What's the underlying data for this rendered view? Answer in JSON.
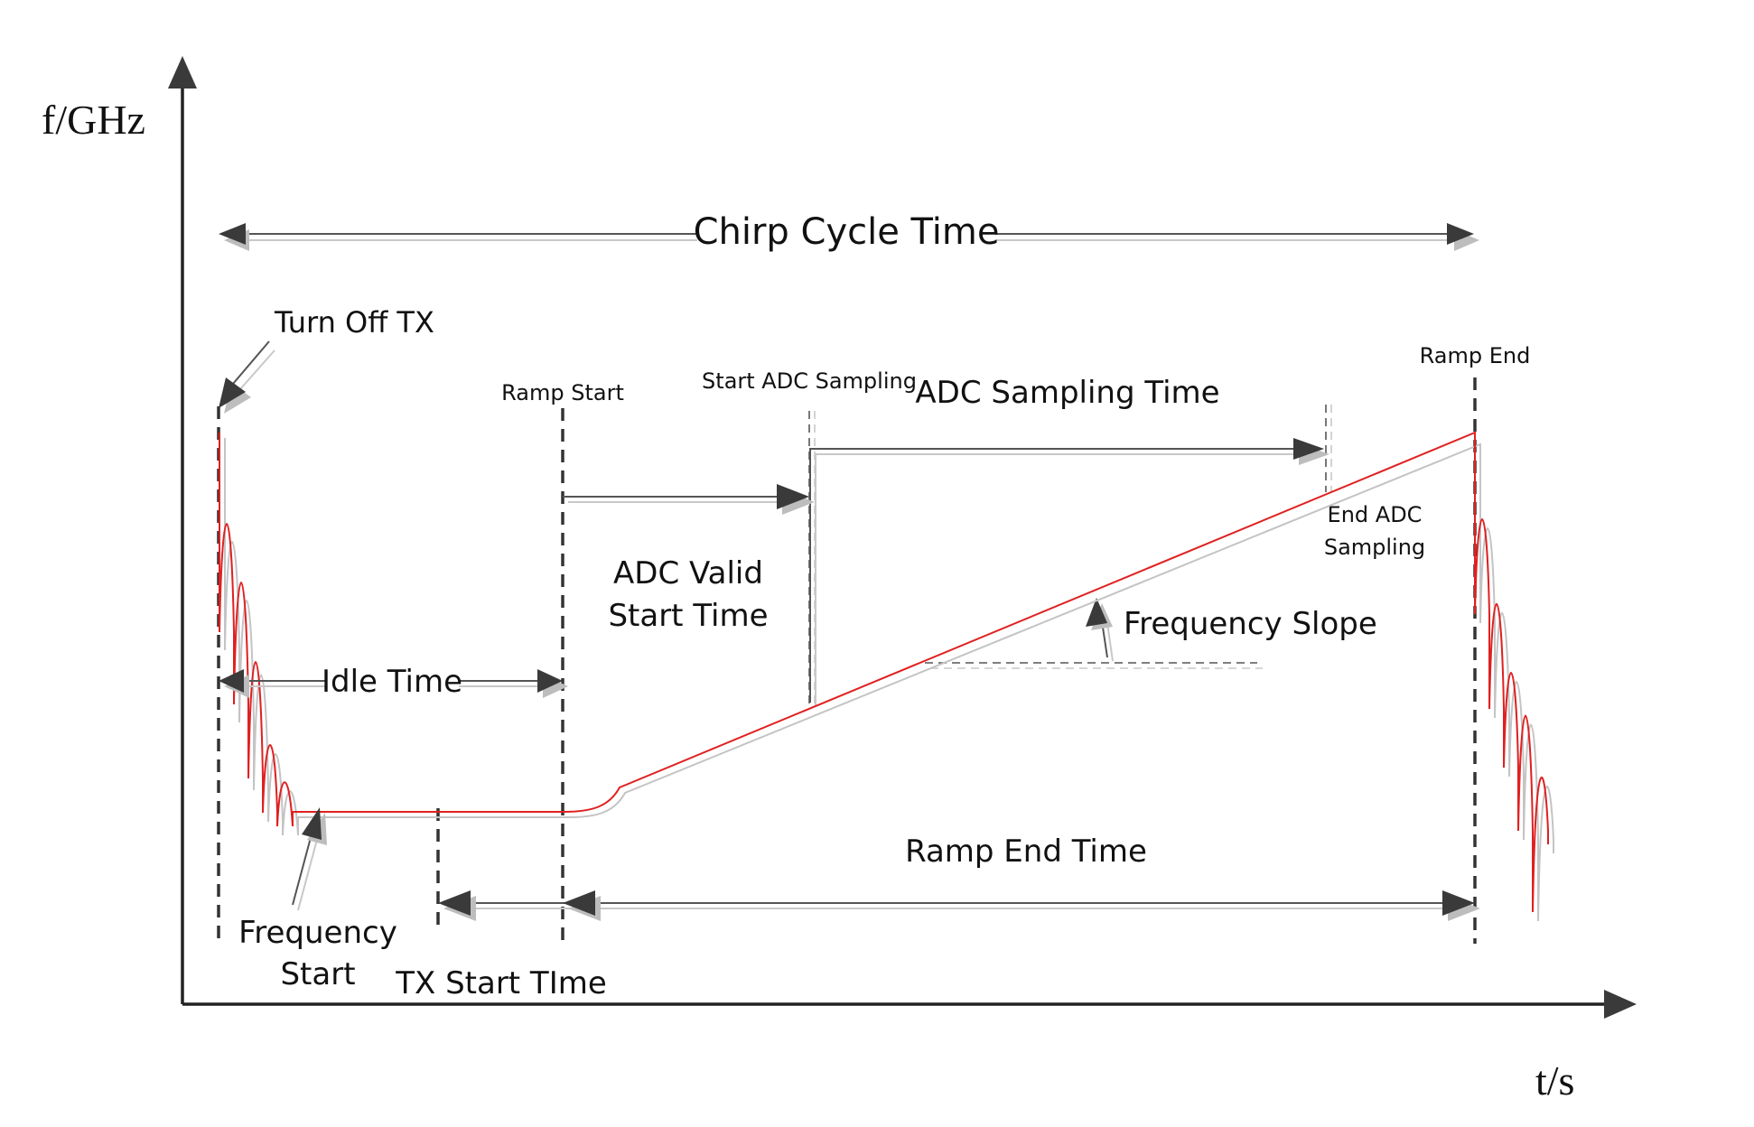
{
  "axes": {
    "y_label": "f/GHz",
    "x_label": "t/s"
  },
  "labels": {
    "chirp_cycle_time": "Chirp Cycle Time",
    "turn_off_tx": "Turn Off TX",
    "ramp_start": "Ramp Start",
    "start_adc_sampling": "Start ADC Sampling",
    "adc_sampling_time": "ADC Sampling Time",
    "ramp_end": "Ramp End",
    "end_adc_line1": "End ADC",
    "end_adc_line2": "Sampling",
    "adc_valid_line1": "ADC Valid",
    "adc_valid_line2": "Start Time",
    "frequency_slope": "Frequency Slope",
    "idle_time": "Idle Time",
    "ramp_end_time": "Ramp End Time",
    "frequency_start_line1": "Frequency",
    "frequency_start_line2": "Start",
    "tx_start_time": "TX Start TIme"
  },
  "colors": {
    "signal": "#e02020",
    "signal_shadow": "#c4c4c4",
    "arrow": "#3a3a3a"
  }
}
